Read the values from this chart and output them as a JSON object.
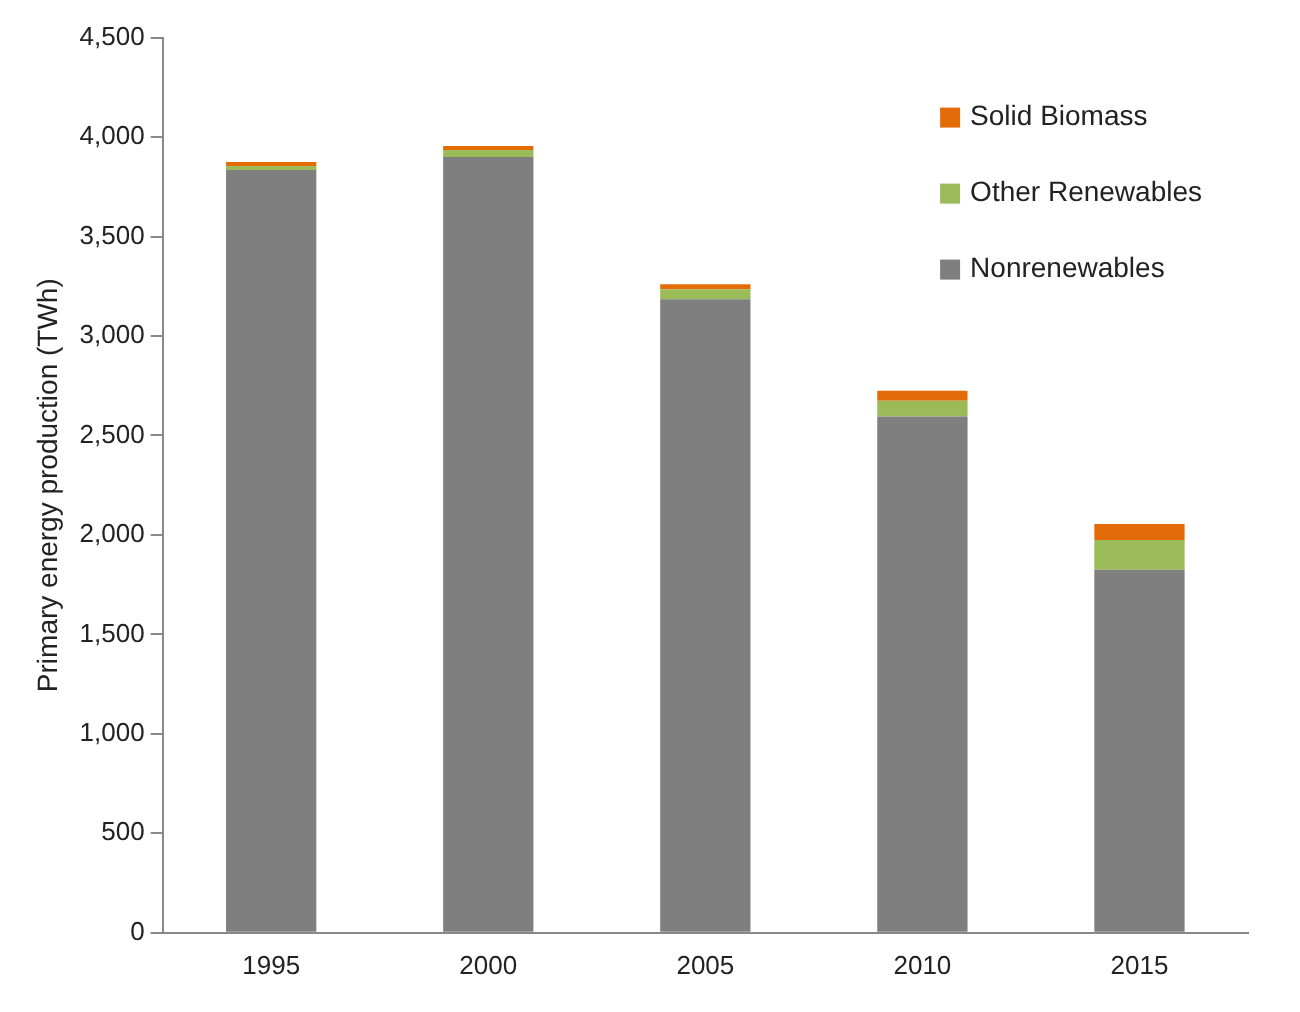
{
  "chart_data": {
    "type": "bar",
    "ylabel": "Primary energy production (TWh)",
    "categories": [
      "1995",
      "2000",
      "2005",
      "2010",
      "2015"
    ],
    "stacked": true,
    "legend": "top right",
    "grid": false,
    "series": [
      {
        "name": "Nonrenewables",
        "color": "#7f7f7f",
        "values": [
          3835,
          3900,
          3185,
          2595,
          1825
        ]
      },
      {
        "name": "Other Renewables",
        "color": "#9bbb59",
        "values": [
          20,
          35,
          50,
          80,
          150
        ]
      },
      {
        "name": "Solid Biomass",
        "color": "#e36c09",
        "values": [
          20,
          20,
          25,
          50,
          80
        ]
      }
    ],
    "ylim": [
      0,
      4500
    ],
    "yticks": [
      {
        "value": 0,
        "label": "0"
      },
      {
        "value": 500,
        "label": "500"
      },
      {
        "value": 1000,
        "label": "1,000"
      },
      {
        "value": 1500,
        "label": "1,500"
      },
      {
        "value": 2000,
        "label": "2,000"
      },
      {
        "value": 2500,
        "label": "2,500"
      },
      {
        "value": 3000,
        "label": "3,000"
      },
      {
        "value": 3500,
        "label": "3,500"
      },
      {
        "value": 4000,
        "label": "4,000"
      },
      {
        "value": 4500,
        "label": "4,500"
      }
    ]
  }
}
